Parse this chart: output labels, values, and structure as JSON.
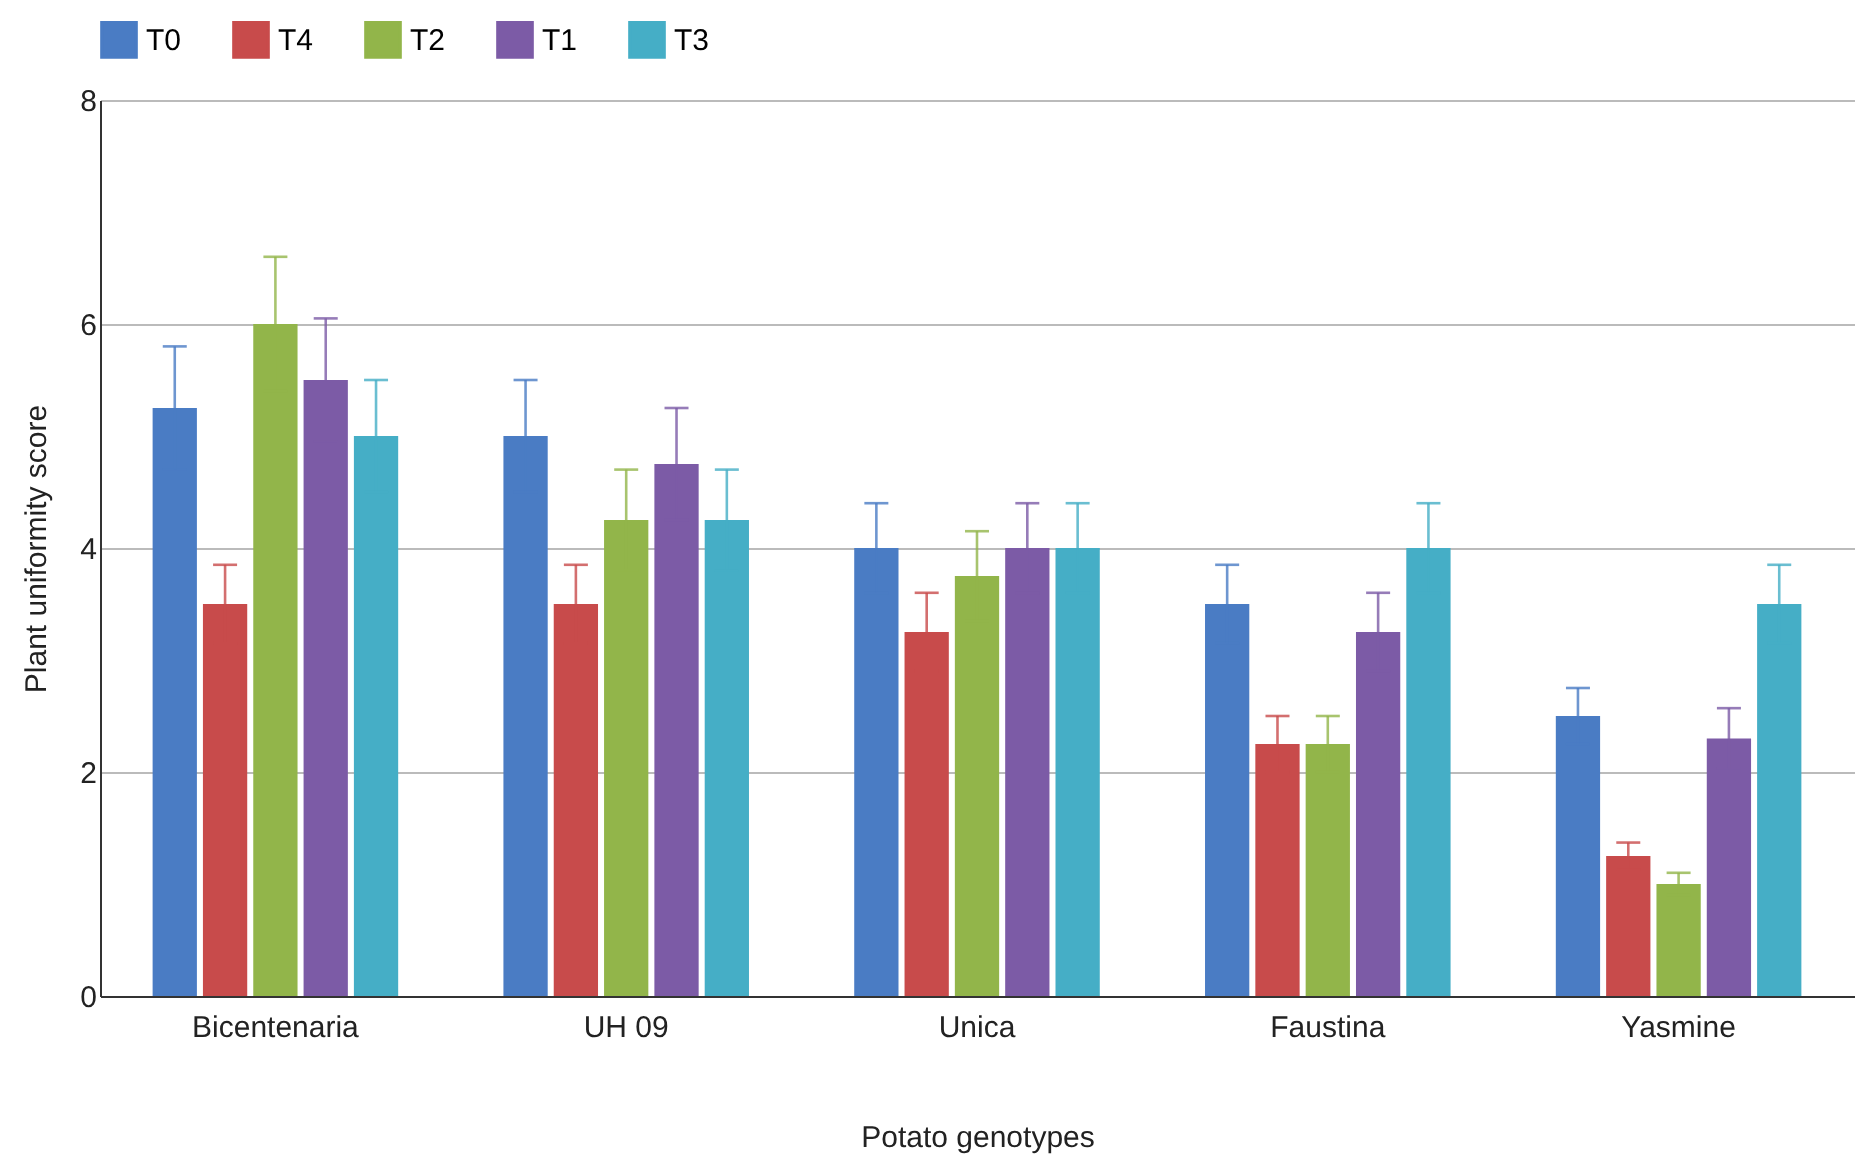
{
  "chart_data": {
    "type": "bar",
    "xlabel": "Potato genotypes",
    "ylabel": "Plant uniformity score",
    "categories": [
      "Bicentenaria",
      "UH 09",
      "Unica",
      "Faustina",
      "Yasmine"
    ],
    "series": [
      {
        "name": "T0",
        "color": "#4a7cc4",
        "values": [
          5.25,
          5.0,
          4.0,
          3.5,
          2.5
        ],
        "errors": [
          0.55,
          0.5,
          0.4,
          0.35,
          0.25
        ]
      },
      {
        "name": "T4",
        "color": "#c84b4b",
        "values": [
          3.5,
          3.5,
          3.25,
          2.25,
          1.25
        ],
        "errors": [
          0.35,
          0.35,
          0.35,
          0.25,
          0.12
        ]
      },
      {
        "name": "T2",
        "color": "#92b54a",
        "values": [
          6.0,
          4.25,
          3.75,
          2.25,
          1.0
        ],
        "errors": [
          0.6,
          0.45,
          0.4,
          0.25,
          0.1
        ]
      },
      {
        "name": "T1",
        "color": "#7c5ba6",
        "values": [
          5.5,
          4.75,
          4.0,
          3.25,
          2.3
        ],
        "errors": [
          0.55,
          0.5,
          0.4,
          0.35,
          0.27
        ]
      },
      {
        "name": "T3",
        "color": "#45aec6",
        "values": [
          5.0,
          4.25,
          4.0,
          4.0,
          3.5
        ],
        "errors": [
          0.5,
          0.45,
          0.4,
          0.4,
          0.35
        ]
      }
    ],
    "ylim": [
      0,
      8
    ],
    "yticks": [
      0,
      2,
      4,
      6,
      8
    ],
    "grid": "y",
    "legend": "top"
  }
}
